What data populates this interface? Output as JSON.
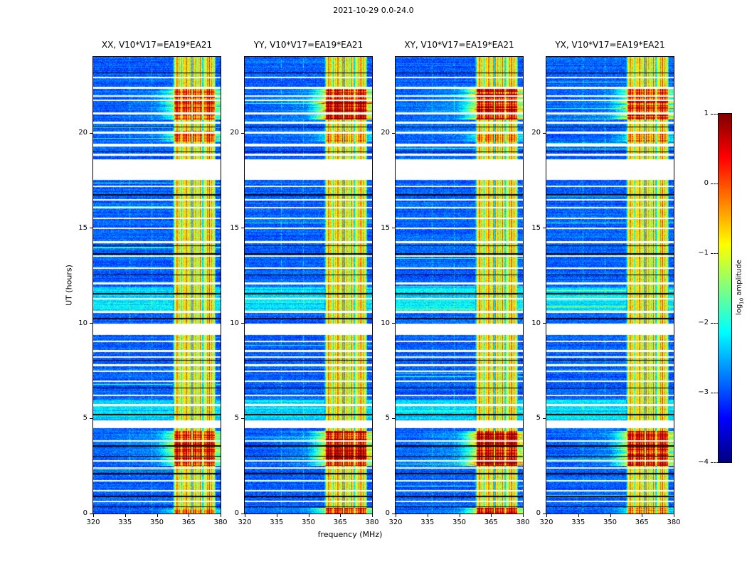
{
  "chart_data": {
    "type": "heatmap",
    "title": "2021-10-29 0.0-24.0",
    "xlabel": "frequency (MHz)",
    "ylabel": "UT (hours)",
    "xlim": [
      320,
      380
    ],
    "ylim": [
      0,
      24
    ],
    "xticks": [
      320,
      335,
      350,
      365,
      380
    ],
    "yticks": [
      0,
      5,
      10,
      15,
      20
    ],
    "panels": [
      {
        "pol": "XX",
        "title": "XX, V10*V17=EA19*EA21"
      },
      {
        "pol": "YY",
        "title": "YY, V10*V17=EA19*EA21"
      },
      {
        "pol": "XY",
        "title": "XY, V10*V17=EA19*EA21"
      },
      {
        "pol": "YX",
        "title": "YX, V10*V17=EA19*EA21"
      }
    ],
    "colorbar": {
      "label_prefix": "log",
      "label_sub": "10",
      "label_suffix": " amplitude",
      "ticks": [
        1,
        0,
        -1,
        -2,
        -3,
        -4
      ],
      "tick_labels": [
        "1",
        "0",
        "−1",
        "−2",
        "−3",
        "−4"
      ],
      "vmin": -4,
      "vmax": 1,
      "colormap": "jet"
    },
    "features": {
      "background_level": -2.9,
      "band_level": -1.0,
      "rfi_band_mhz": [
        357.5,
        377.8
      ],
      "band_notches_mhz": [
        361.7,
        366.6,
        371.7
      ],
      "faint_lines_mhz": [
        337.3,
        347.6
      ],
      "data_gaps_ut": [
        [
          17.55,
          18.6
        ],
        [
          9.4,
          10.0
        ],
        [
          4.5,
          4.9
        ],
        [
          22.86,
          22.94
        ],
        [
          22.3,
          22.42
        ],
        [
          21.9,
          21.98
        ],
        [
          21.68,
          21.76
        ],
        [
          20.96,
          21.08
        ],
        [
          20.5,
          20.6
        ],
        [
          19.98,
          20.06
        ],
        [
          19.3,
          19.44
        ],
        [
          18.8,
          18.9
        ],
        [
          17.16,
          17.24
        ],
        [
          16.46,
          16.54
        ],
        [
          16.02,
          16.12
        ],
        [
          15.46,
          15.54
        ],
        [
          14.96,
          15.04
        ],
        [
          14.2,
          14.3
        ],
        [
          13.48,
          13.58
        ],
        [
          12.86,
          12.94
        ],
        [
          12.05,
          12.15
        ],
        [
          11.26,
          11.34
        ],
        [
          10.55,
          10.65
        ],
        [
          9.0,
          9.1
        ],
        [
          8.5,
          8.6
        ],
        [
          8.18,
          8.26
        ],
        [
          7.75,
          7.85
        ],
        [
          7.44,
          7.52
        ],
        [
          6.9,
          7.0
        ],
        [
          6.15,
          6.25
        ],
        [
          5.66,
          5.74
        ],
        [
          3.76,
          3.84
        ],
        [
          2.72,
          2.82
        ],
        [
          2.36,
          2.44
        ],
        [
          1.68,
          1.76
        ],
        [
          1.16,
          1.24
        ],
        [
          0.6,
          0.68
        ]
      ],
      "flagged_lines_ut": [
        23.15,
        20.32,
        19.0,
        16.75,
        14.08,
        13.65,
        12.55,
        11.55,
        10.25,
        8.05,
        6.6,
        5.2,
        3.55,
        3.0,
        2.1,
        0.9,
        0.35
      ],
      "enhanced_rows_ut": [
        [
          4.95,
          6.0
        ],
        [
          10.6,
          11.9
        ]
      ],
      "bright_events": [
        {
          "ut": [
            2.5,
            4.35
          ],
          "level": 0.5,
          "panel_gain": [
            0.75,
            1.0,
            1.0,
            0.85
          ]
        },
        {
          "ut": [
            20.7,
            22.3
          ],
          "level": 0.5,
          "panel_gain": [
            0.7,
            1.0,
            0.95,
            0.8
          ]
        },
        {
          "ut": [
            19.55,
            20.1
          ],
          "level": 0.3,
          "panel_gain": [
            0.9,
            0.5,
            0.6,
            0.7
          ]
        },
        {
          "ut": [
            0.0,
            0.3
          ],
          "level": 0.35,
          "panel_gain": [
            0.5,
            1.0,
            1.0,
            0.6
          ]
        }
      ]
    }
  }
}
